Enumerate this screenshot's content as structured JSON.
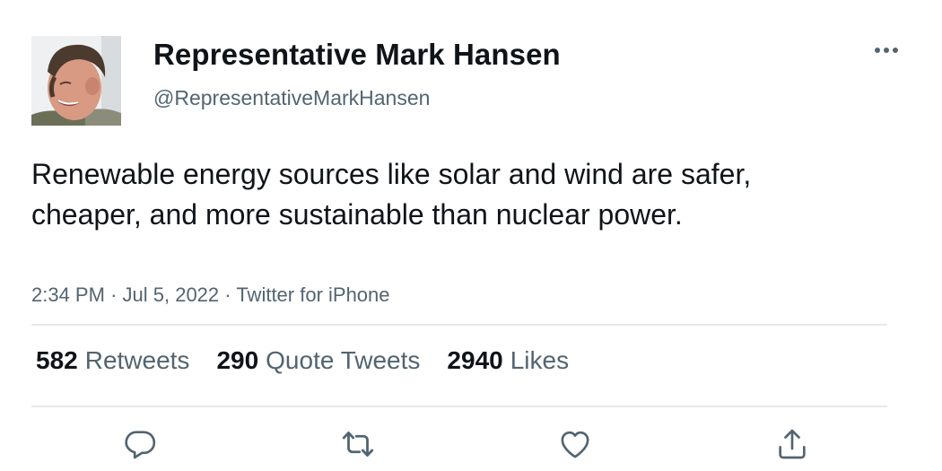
{
  "author": {
    "display_name": "Representative Mark Hansen",
    "handle": "@RepresentativeMarkHansen",
    "avatar_icon": "profile-photo"
  },
  "tweet": {
    "text": "Renewable energy sources like solar and wind are safer, cheaper, and more sustainable than nuclear power.",
    "time": "2:34 PM",
    "date": "Jul 5, 2022",
    "source": "Twitter for iPhone",
    "separator": "·"
  },
  "stats": {
    "retweets": {
      "count": "582",
      "label": "Retweets"
    },
    "quote_tweets": {
      "count": "290",
      "label": "Quote Tweets"
    },
    "likes": {
      "count": "2940",
      "label": "Likes"
    }
  },
  "actions": {
    "reply_icon": "reply-icon",
    "retweet_icon": "retweet-icon",
    "like_icon": "heart-icon",
    "share_icon": "share-icon"
  },
  "colors": {
    "primary_text": "#0f1419",
    "secondary_text": "#536471",
    "divider": "#e6e9eb",
    "icon": "#536471"
  }
}
